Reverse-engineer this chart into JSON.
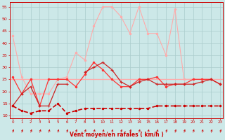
{
  "x": [
    0,
    1,
    2,
    3,
    4,
    5,
    6,
    7,
    8,
    9,
    10,
    11,
    12,
    13,
    14,
    15,
    16,
    17,
    18,
    19,
    20,
    21,
    22,
    23
  ],
  "line_gust_pink": [
    43,
    26,
    19,
    19,
    19,
    25,
    26,
    36,
    33,
    47,
    55,
    55,
    51,
    44,
    55,
    44,
    44,
    35,
    54,
    25,
    25,
    25,
    25,
    23
  ],
  "line_avg_red": [
    26,
    19,
    25,
    14,
    25,
    25,
    25,
    22,
    27,
    32,
    29,
    25,
    22,
    22,
    25,
    25,
    26,
    22,
    23,
    23,
    25,
    25,
    25,
    23
  ],
  "line_med_pink": [
    null,
    null,
    null,
    null,
    null,
    null,
    null,
    null,
    null,
    null,
    null,
    null,
    null,
    null,
    null,
    null,
    null,
    null,
    null,
    null,
    null,
    null,
    null,
    null
  ],
  "line_horiz_pink": 25,
  "line_dashed_dark": [
    14,
    12,
    11,
    12,
    12,
    15,
    11,
    12,
    13,
    13,
    13,
    13,
    13,
    13,
    13,
    13,
    14,
    14,
    14,
    14,
    14,
    14,
    14,
    14
  ],
  "line_upper_dark": [
    14,
    19,
    22,
    14,
    14,
    23,
    23,
    null,
    28,
    30,
    32,
    29,
    24,
    22,
    24,
    25,
    23,
    23,
    23,
    23,
    23,
    24,
    25,
    23
  ],
  "background_color": "#cce8e8",
  "grid_color": "#aacccc",
  "line_gust_color": "#ffaaaa",
  "line_avg_color": "#ff3333",
  "line_horiz_color": "#ffaaaa",
  "line_dashed_color": "#cc0000",
  "line_upper_color": "#cc2222",
  "xlabel": "Vent moyen/en rafales ( km/h )",
  "ylabel_ticks": [
    10,
    15,
    20,
    25,
    30,
    35,
    40,
    45,
    50,
    55
  ],
  "xlim": [
    -0.3,
    23.3
  ],
  "ylim": [
    9,
    57
  ],
  "marker_size": 2.5
}
